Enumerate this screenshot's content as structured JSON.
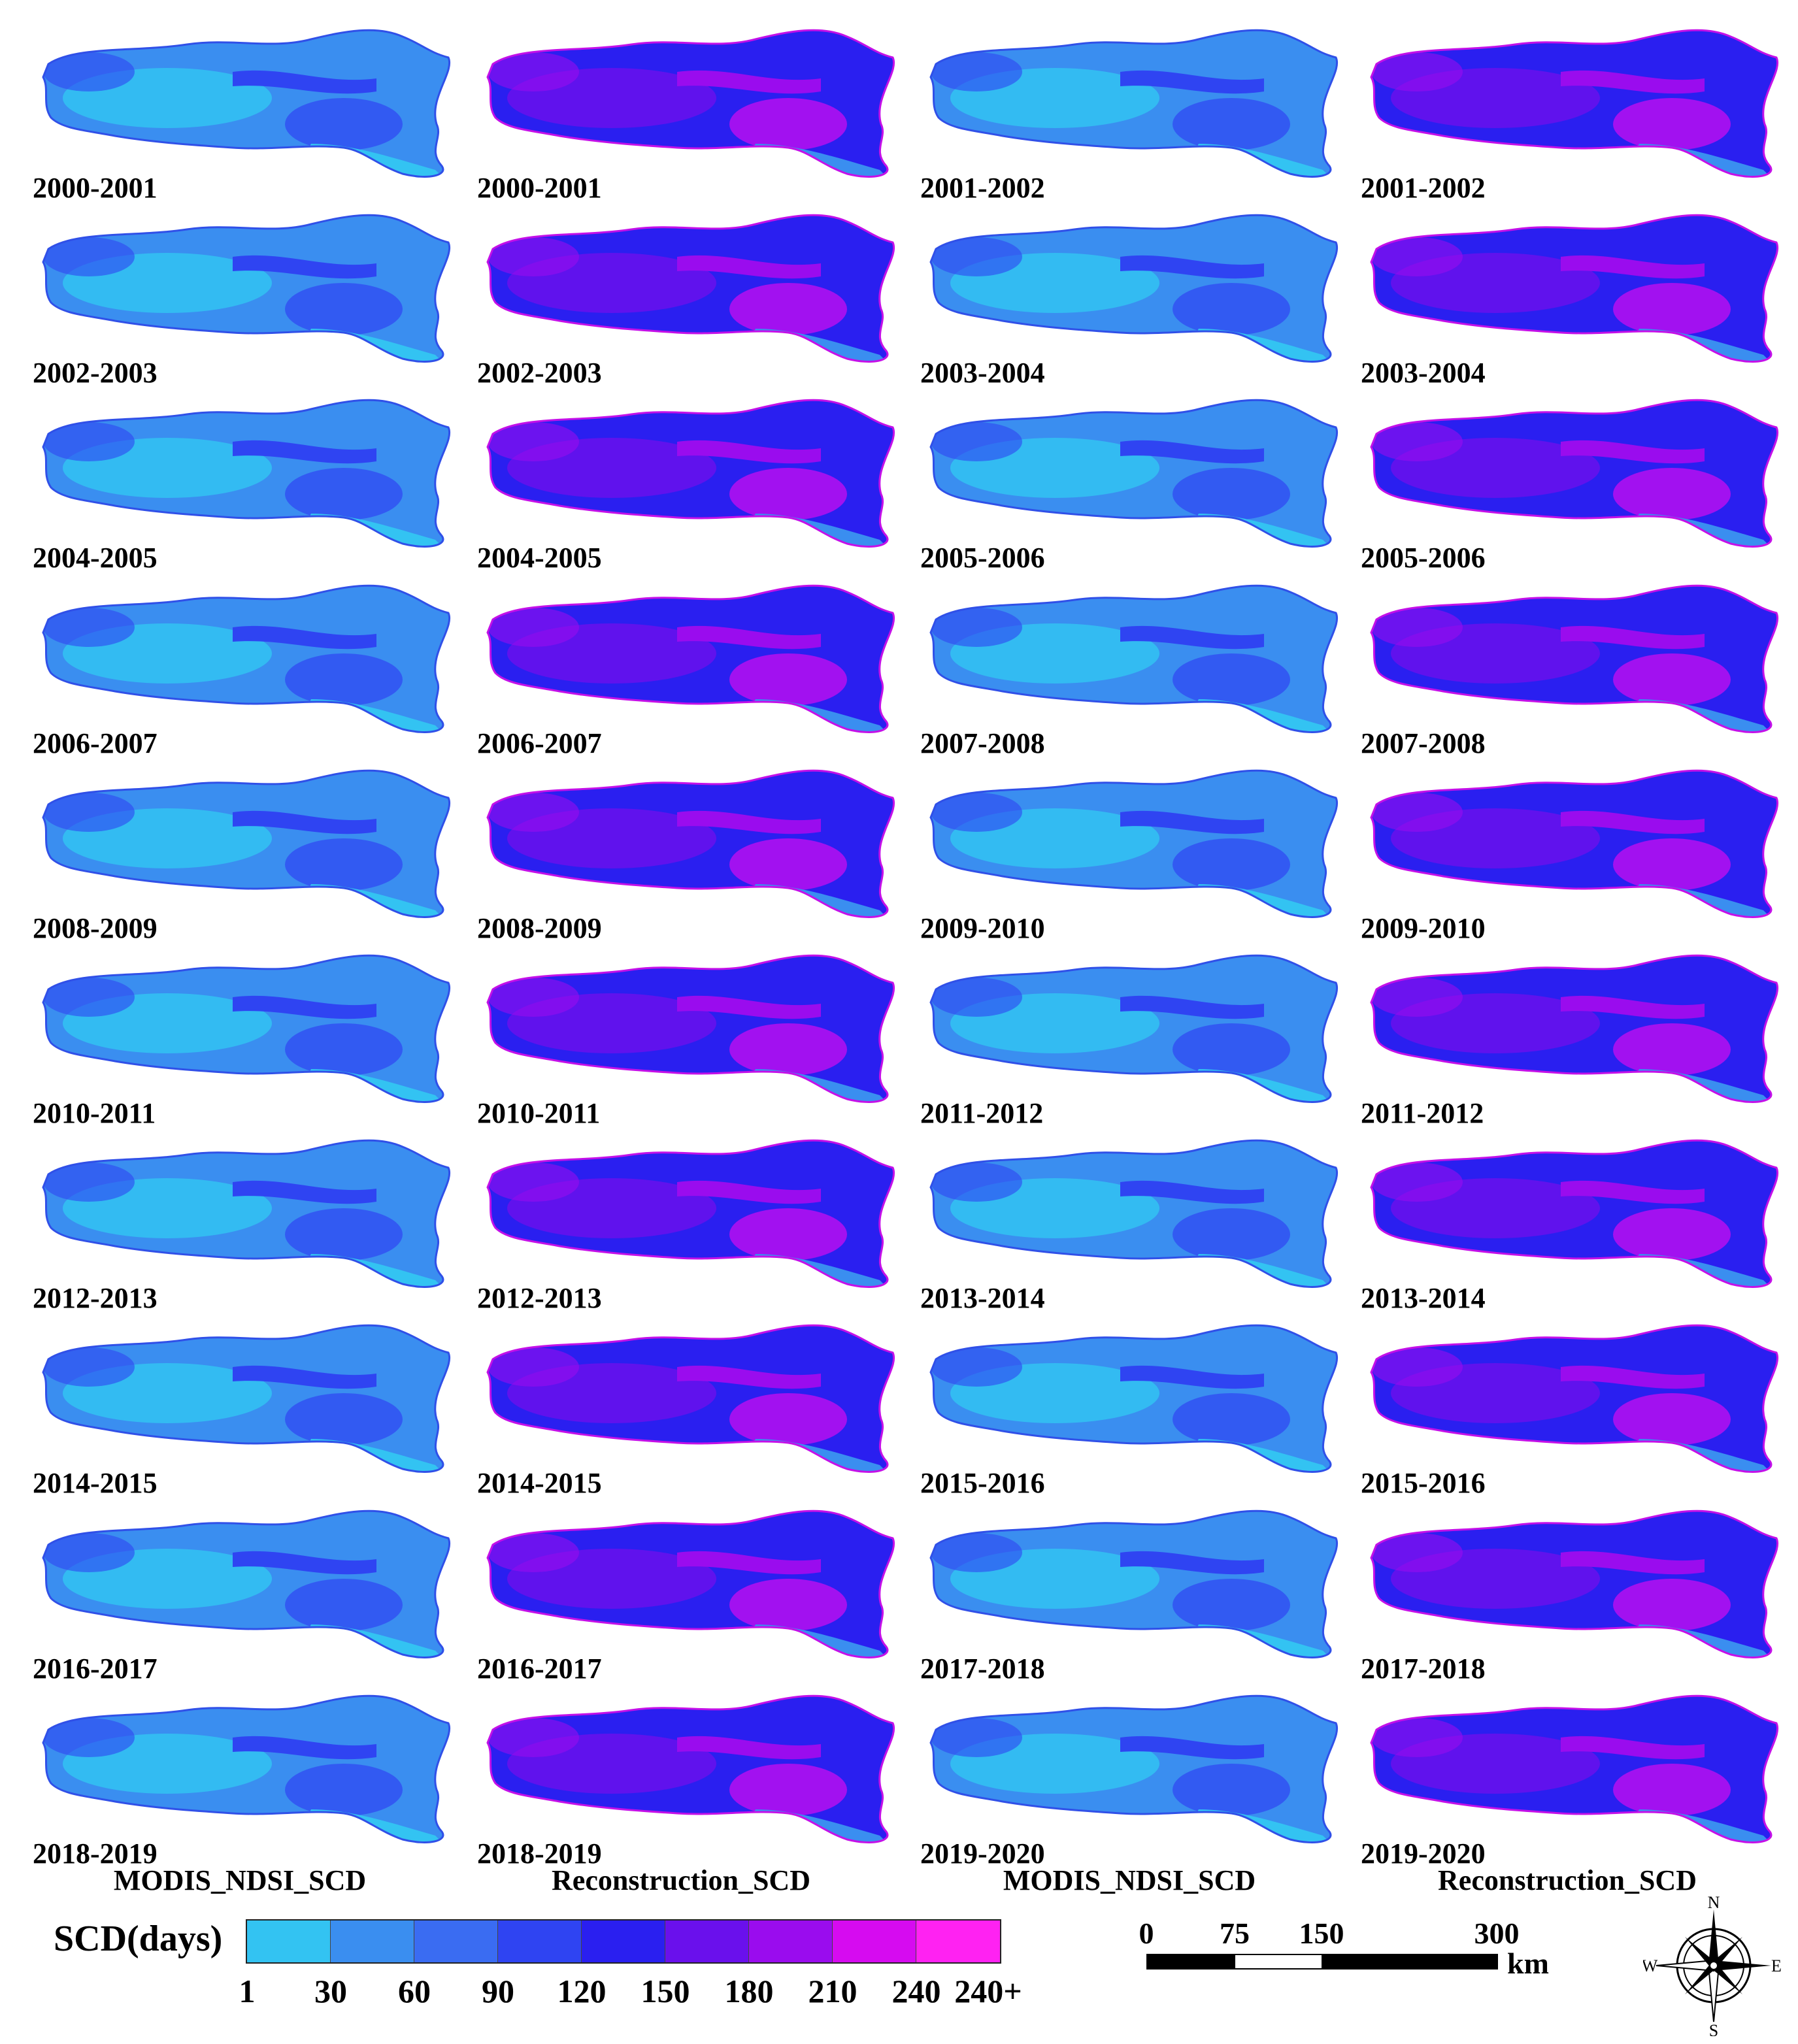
{
  "figure": {
    "column_titles": [
      "MODIS_NDSI_SCD",
      "Reconstruction_SCD",
      "MODIS_NDSI_SCD",
      "Reconstruction_SCD"
    ],
    "rows": [
      [
        "2000-2001",
        "2000-2001",
        "2001-2002",
        "2001-2002"
      ],
      [
        "2002-2003",
        "2002-2003",
        "2003-2004",
        "2003-2004"
      ],
      [
        "2004-2005",
        "2004-2005",
        "2005-2006",
        "2005-2006"
      ],
      [
        "2006-2007",
        "2006-2007",
        "2007-2008",
        "2007-2008"
      ],
      [
        "2008-2009",
        "2008-2009",
        "2009-2010",
        "2009-2010"
      ],
      [
        "2010-2011",
        "2010-2011",
        "2011-2012",
        "2011-2012"
      ],
      [
        "2012-2013",
        "2012-2013",
        "2013-2014",
        "2013-2014"
      ],
      [
        "2014-2015",
        "2014-2015",
        "2015-2016",
        "2015-2016"
      ],
      [
        "2016-2017",
        "2016-2017",
        "2017-2018",
        "2017-2018"
      ],
      [
        "2018-2019",
        "2018-2019",
        "2019-2020",
        "2019-2020"
      ]
    ]
  },
  "legend": {
    "title": "SCD(days)",
    "tick_labels": [
      "1",
      "30",
      "60",
      "90",
      "120",
      "150",
      "180",
      "210",
      "240",
      "240+"
    ],
    "class_colors": [
      "#33c3f2",
      "#3a8ef0",
      "#3a6cf2",
      "#2f44f2",
      "#2a1ff0",
      "#6a10ec",
      "#9a0cee",
      "#d60bf0",
      "#ff22f2"
    ]
  },
  "scale_bar": {
    "labels": [
      "0",
      "75",
      "150",
      "300"
    ],
    "unit": "km"
  },
  "north_arrow": {
    "n": "N",
    "s": "S",
    "e": "E",
    "w": "W"
  },
  "palette": {
    "modis": [
      "#3a8ef0",
      "#33c3f2",
      "#2f44f2"
    ],
    "recon": [
      "#2a1ff0",
      "#6a10ec",
      "#9a0cee",
      "#d60bf0"
    ]
  }
}
